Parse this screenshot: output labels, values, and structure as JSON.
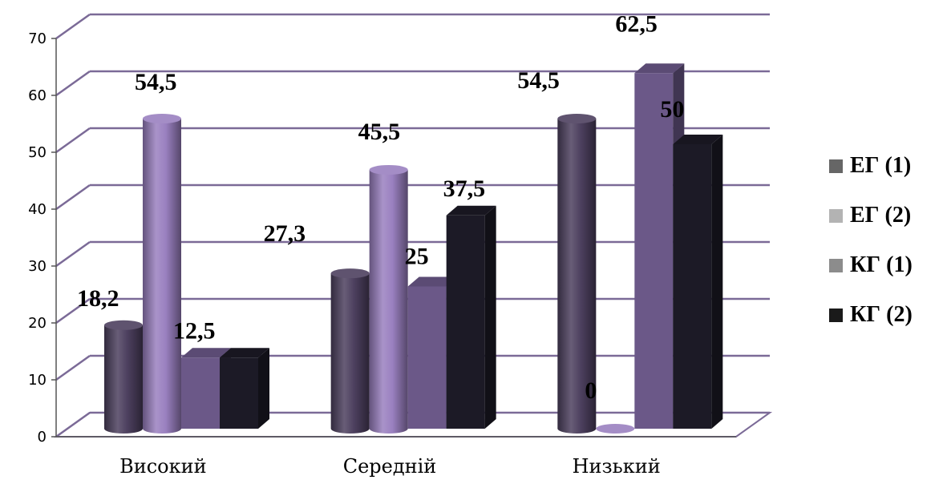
{
  "chart_data": {
    "type": "bar",
    "categories": [
      "Високий",
      "Середній",
      "Низький"
    ],
    "series": [
      {
        "name": "ЕГ (1)",
        "values": [
          18.2,
          27.3,
          54.5
        ],
        "labels": [
          "18,2",
          "27,3",
          "54,5"
        ],
        "shape": "cylinder",
        "color": "#4d405f",
        "legend_color": "#666666"
      },
      {
        "name": "ЕГ (2)",
        "values": [
          54.5,
          45.5,
          0
        ],
        "labels": [
          "54,5",
          "45,5",
          "0"
        ],
        "shape": "cylinder",
        "color": "#9a80c0",
        "legend_color": "#b3b3b3"
      },
      {
        "name": "КГ (1)",
        "values": [
          12.5,
          25,
          62.5
        ],
        "labels": [
          "12,5",
          "25",
          "62,5"
        ],
        "shape": "box",
        "color": "#6b5888",
        "legend_color": "#8c8c8c"
      },
      {
        "name": "КГ (2)",
        "values": [
          12.5,
          37.5,
          50
        ],
        "labels": [
          "",
          "37,5",
          "50"
        ],
        "shape": "box",
        "color": "#1c1a26",
        "legend_color": "#1a1a1a"
      }
    ],
    "ylim": [
      0,
      70
    ],
    "yticks": [
      "0",
      "10",
      "20",
      "30",
      "40",
      "50",
      "60",
      "70"
    ],
    "grid": true,
    "legend_position": "right",
    "grid_color": "#7b6a97",
    "title": "",
    "xlabel": "",
    "ylabel": ""
  }
}
